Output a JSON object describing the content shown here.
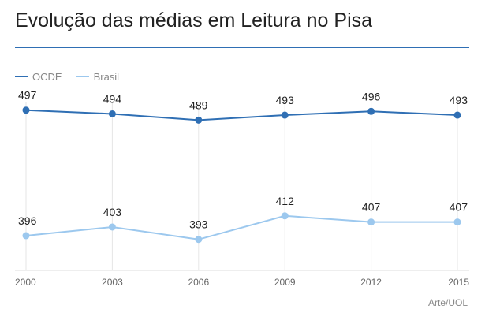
{
  "title": "Evolução das médias em Leitura no Pisa",
  "credit": "Arte/UOL",
  "colors": {
    "rule": "#2f6fb4",
    "grid": "#e6e6e6",
    "axis": "#dddddd",
    "tick_text": "#666666",
    "value_text": "#222222"
  },
  "chart_data": {
    "type": "line",
    "title": "Evolução das médias em Leitura no Pisa",
    "xlabel": "",
    "ylabel": "",
    "categories": [
      "2000",
      "2003",
      "2006",
      "2009",
      "2012",
      "2015"
    ],
    "ylim": [
      370,
      500
    ],
    "grid": "vertical",
    "legend_position": "top-left",
    "series": [
      {
        "name": "OCDE",
        "color": "#2f6fb4",
        "values": [
          497,
          494,
          489,
          493,
          496,
          493
        ]
      },
      {
        "name": "Brasil",
        "color": "#9cc8ee",
        "values": [
          396,
          403,
          393,
          412,
          407,
          407
        ]
      }
    ]
  }
}
